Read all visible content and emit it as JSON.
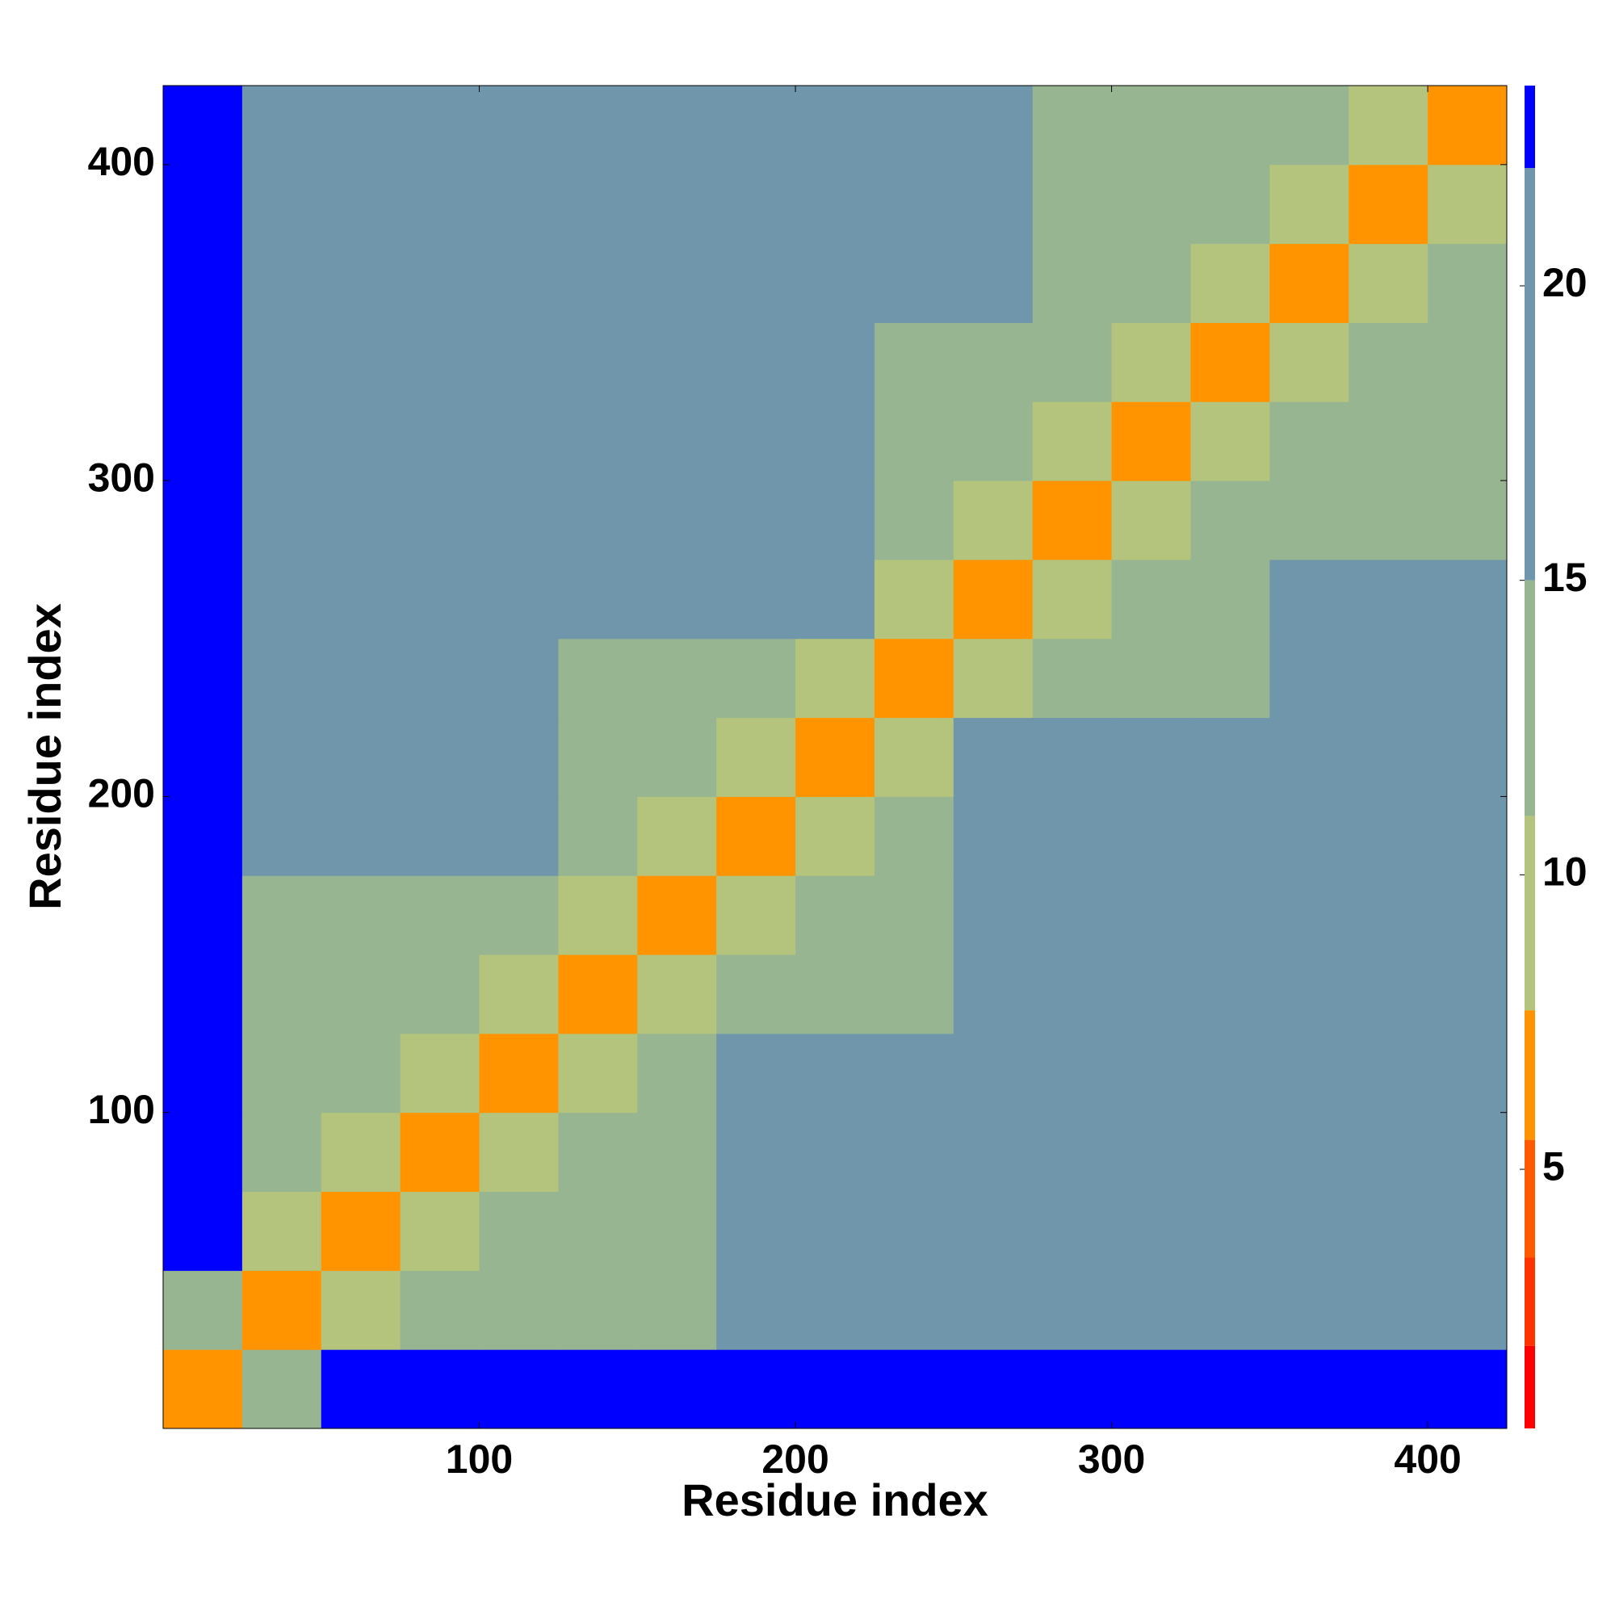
{
  "chart_data": {
    "type": "heatmap",
    "xlabel": "Residue index",
    "ylabel": "Residue index",
    "xlim": [
      0,
      425
    ],
    "ylim": [
      0,
      425
    ],
    "xticks": [
      100,
      200,
      300,
      400
    ],
    "yticks": [
      100,
      200,
      300,
      400
    ],
    "bins": [
      0,
      25,
      50,
      75,
      100,
      125,
      150,
      175,
      200,
      225,
      250,
      275,
      300,
      325,
      350,
      375,
      400,
      425
    ],
    "z": [
      [
        6,
        12,
        23,
        23,
        23,
        23,
        23,
        23,
        23,
        23,
        23,
        23,
        23,
        23,
        23,
        23,
        23
      ],
      [
        12,
        6,
        11,
        14,
        14,
        14,
        14,
        22,
        22,
        22,
        22,
        22,
        22,
        22,
        17,
        17,
        17
      ],
      [
        23,
        11,
        6,
        11,
        14,
        14,
        14,
        22,
        22,
        22,
        22,
        22,
        22,
        22,
        17,
        17,
        17
      ],
      [
        23,
        14,
        11,
        6,
        11,
        14,
        14,
        22,
        22,
        22,
        22,
        22,
        22,
        22,
        17,
        17,
        17
      ],
      [
        23,
        14,
        14,
        11,
        6,
        11,
        14,
        22,
        22,
        22,
        22,
        22,
        22,
        22,
        22,
        22,
        22
      ],
      [
        23,
        14,
        14,
        14,
        11,
        6,
        11,
        14,
        14,
        14,
        22,
        22,
        22,
        22,
        22,
        22,
        22
      ],
      [
        23,
        14,
        14,
        14,
        14,
        11,
        6,
        11,
        14,
        14,
        22,
        22,
        22,
        22,
        22,
        22,
        22
      ],
      [
        23,
        22,
        22,
        22,
        22,
        14,
        11,
        6,
        11,
        14,
        18,
        18,
        22,
        22,
        22,
        22,
        22
      ],
      [
        23,
        22,
        22,
        22,
        22,
        14,
        14,
        11,
        6,
        11,
        18,
        18,
        22,
        22,
        22,
        22,
        22
      ],
      [
        23,
        22,
        22,
        22,
        22,
        14,
        14,
        14,
        11,
        6,
        11,
        14,
        14,
        14,
        22,
        22,
        22
      ],
      [
        23,
        22,
        22,
        22,
        22,
        22,
        22,
        18,
        18,
        11,
        6,
        11,
        14,
        14,
        22,
        22,
        22
      ],
      [
        23,
        22,
        22,
        22,
        22,
        22,
        22,
        18,
        18,
        14,
        11,
        6,
        11,
        14,
        14,
        14,
        14
      ],
      [
        23,
        22,
        22,
        22,
        22,
        22,
        22,
        22,
        22,
        14,
        14,
        11,
        6,
        11,
        14,
        14,
        14
      ],
      [
        23,
        22,
        22,
        22,
        22,
        22,
        22,
        22,
        22,
        14,
        14,
        14,
        11,
        6,
        11,
        14,
        14
      ],
      [
        23,
        17,
        17,
        17,
        22,
        22,
        22,
        22,
        22,
        22,
        22,
        14,
        14,
        11,
        6,
        11,
        14
      ],
      [
        23,
        17,
        17,
        17,
        22,
        22,
        22,
        22,
        22,
        22,
        22,
        14,
        14,
        14,
        11,
        6,
        11
      ],
      [
        23,
        17,
        17,
        17,
        22,
        22,
        22,
        22,
        22,
        22,
        22,
        14,
        14,
        14,
        14,
        11,
        6
      ]
    ],
    "zlim": [
      0.6,
      23.4
    ],
    "zticks": [
      5,
      10,
      15,
      20
    ],
    "colorscale": [
      {
        "max": 2,
        "color": "#ff0000"
      },
      {
        "max": 3.5,
        "color": "#ff3300"
      },
      {
        "max": 5.5,
        "color": "#ff5a00"
      },
      {
        "max": 7.7,
        "color": "#ff9400"
      },
      {
        "max": 11,
        "color": "#b4c47c"
      },
      {
        "max": 15,
        "color": "#98b592"
      },
      {
        "max": 22,
        "color": "#7096ab"
      },
      {
        "max": 23.4,
        "color": "#0000ff"
      }
    ]
  }
}
